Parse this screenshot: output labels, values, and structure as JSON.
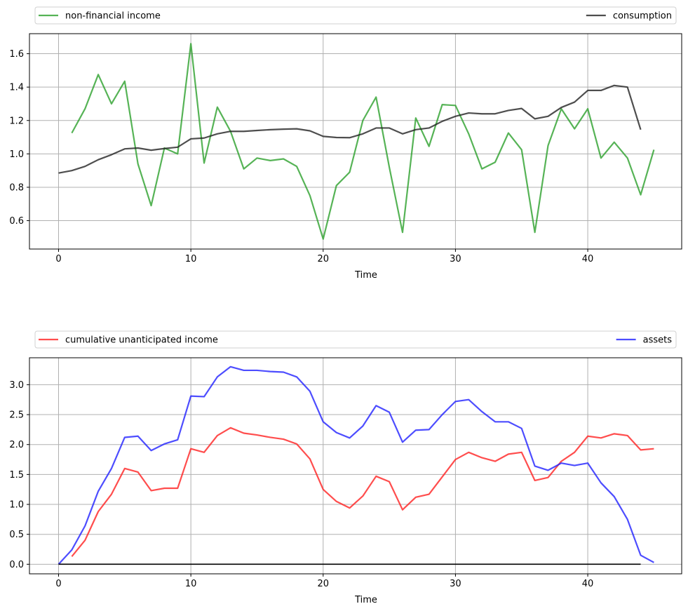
{
  "chart_data": [
    {
      "type": "line",
      "xlabel": "Time",
      "xlim": [
        -2.2,
        47.1
      ],
      "ylim": [
        0.43,
        1.72
      ],
      "xticks": [
        0,
        10,
        20,
        30,
        40
      ],
      "yticks": [
        0.6,
        0.8,
        1.0,
        1.2,
        1.4,
        1.6
      ],
      "ytick_labels": [
        "0.6",
        "0.8",
        "1.0",
        "1.2",
        "1.4",
        "1.6"
      ],
      "grid": true,
      "legend_placement": "above plot, spanning width",
      "series": [
        {
          "name": "non-financial income",
          "color": "#2ca02c",
          "x_start": 1,
          "values": [
            1.125,
            1.27,
            1.475,
            1.3,
            1.435,
            0.94,
            0.69,
            1.035,
            1.0,
            1.66,
            0.945,
            1.28,
            1.135,
            0.91,
            0.975,
            0.96,
            0.97,
            0.925,
            0.75,
            0.49,
            0.81,
            0.89,
            1.2,
            1.34,
            0.92,
            0.53,
            1.215,
            1.045,
            1.295,
            1.29,
            1.12,
            0.91,
            0.95,
            1.125,
            1.025,
            0.53,
            1.05,
            1.27,
            1.15,
            1.27,
            0.975,
            1.07,
            0.975,
            0.755,
            1.025
          ]
        },
        {
          "name": "consumption",
          "color": "#222222",
          "x_start": 0,
          "values": [
            0.885,
            0.9,
            0.925,
            0.965,
            0.995,
            1.03,
            1.035,
            1.022,
            1.032,
            1.04,
            1.09,
            1.095,
            1.12,
            1.135,
            1.135,
            1.14,
            1.145,
            1.148,
            1.15,
            1.138,
            1.105,
            1.098,
            1.097,
            1.12,
            1.155,
            1.155,
            1.12,
            1.145,
            1.155,
            1.195,
            1.225,
            1.245,
            1.24,
            1.24,
            1.26,
            1.272,
            1.21,
            1.225,
            1.278,
            1.31,
            1.38,
            1.38,
            1.41,
            1.4,
            1.145
          ]
        }
      ]
    },
    {
      "type": "line",
      "xlabel": "Time",
      "xlim": [
        -2.2,
        47.1
      ],
      "ylim": [
        -0.16,
        3.45
      ],
      "xticks": [
        0,
        10,
        20,
        30,
        40
      ],
      "yticks": [
        0.0,
        0.5,
        1.0,
        1.5,
        2.0,
        2.5,
        3.0
      ],
      "ytick_labels": [
        "0.0",
        "0.5",
        "1.0",
        "1.5",
        "2.0",
        "2.5",
        "3.0"
      ],
      "grid": true,
      "legend_placement": "above plot, spanning width",
      "series": [
        {
          "name": "cumulative unanticipated income",
          "color": "#ff2020",
          "x_start": 1,
          "values": [
            0.13,
            0.4,
            0.88,
            1.17,
            1.6,
            1.54,
            1.23,
            1.27,
            1.27,
            1.93,
            1.87,
            2.15,
            2.28,
            2.19,
            2.16,
            2.12,
            2.09,
            2.01,
            1.76,
            1.25,
            1.05,
            0.94,
            1.14,
            1.47,
            1.38,
            0.91,
            1.12,
            1.17,
            1.46,
            1.75,
            1.87,
            1.78,
            1.72,
            1.84,
            1.87,
            1.4,
            1.45,
            1.72,
            1.87,
            2.14,
            2.11,
            2.18,
            2.15,
            1.91,
            1.93
          ]
        },
        {
          "name": "assets",
          "color": "#2020ff",
          "x_start": 0,
          "values": [
            0.0,
            0.24,
            0.64,
            1.22,
            1.6,
            2.12,
            2.14,
            1.9,
            2.01,
            2.08,
            2.81,
            2.8,
            3.13,
            3.3,
            3.24,
            3.24,
            3.22,
            3.21,
            3.13,
            2.89,
            2.38,
            2.2,
            2.11,
            2.31,
            2.65,
            2.54,
            2.04,
            2.24,
            2.25,
            2.5,
            2.72,
            2.75,
            2.55,
            2.38,
            2.38,
            2.27,
            1.64,
            1.57,
            1.69,
            1.65,
            1.69,
            1.36,
            1.13,
            0.75,
            0.15,
            0.03
          ]
        },
        {
          "name": "",
          "color": "#000000",
          "x_start": 0,
          "values": [
            0,
            0,
            0,
            0,
            0,
            0,
            0,
            0,
            0,
            0,
            0,
            0,
            0,
            0,
            0,
            0,
            0,
            0,
            0,
            0,
            0,
            0,
            0,
            0,
            0,
            0,
            0,
            0,
            0,
            0,
            0,
            0,
            0,
            0,
            0,
            0,
            0,
            0,
            0,
            0,
            0,
            0,
            0,
            0,
            0
          ]
        }
      ]
    }
  ]
}
